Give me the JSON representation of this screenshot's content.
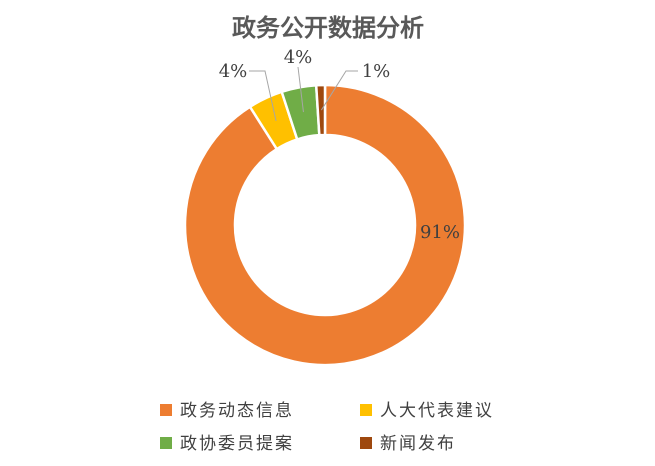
{
  "chart_data": {
    "type": "pie",
    "title": "政务公开数据分析",
    "categories": [
      "政务动态信息",
      "人大代表建议",
      "政协委员提案",
      "新闻发布"
    ],
    "values": [
      91,
      4,
      4,
      1
    ],
    "labels": [
      "91%",
      "4%",
      "4%",
      "1%"
    ],
    "colors": [
      "#ED7D31",
      "#FFC000",
      "#70AD47",
      "#9E480E"
    ],
    "donut": true,
    "legend_position": "bottom"
  }
}
